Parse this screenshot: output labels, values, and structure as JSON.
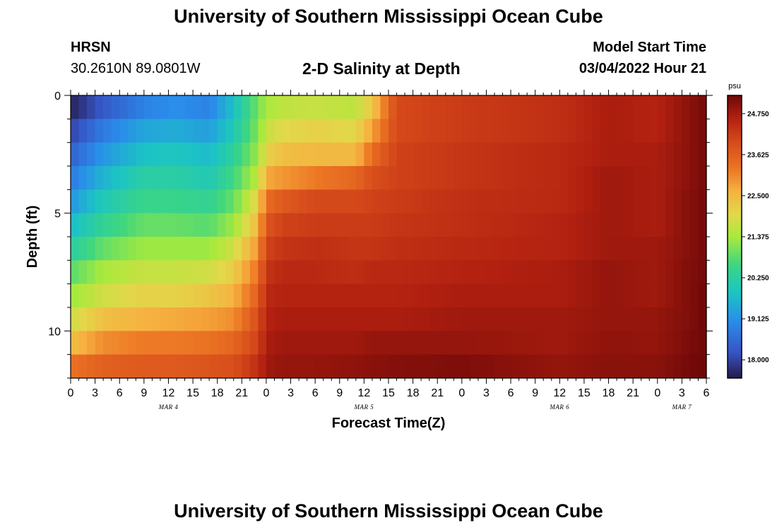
{
  "header": {
    "title": "University of Southern Mississippi Ocean Cube",
    "station": "HRSN",
    "coords": "30.2610N  89.0801W",
    "subtitle": "2-D Salinity at Depth",
    "model_start_label": "Model Start Time",
    "model_start_value": "03/04/2022 Hour 21"
  },
  "footer": {
    "title": "University of Southern Mississippi Ocean Cube"
  },
  "chart_data": {
    "type": "heatmap",
    "title": "2-D Salinity at Depth",
    "xlabel": "Forecast Time(Z)",
    "ylabel": "Depth (ft)",
    "x_range_hours": [
      0,
      78
    ],
    "y_range_ft": [
      0,
      12
    ],
    "y_ticks": [
      0,
      5,
      10
    ],
    "x_tick_labels": [
      "0",
      "3",
      "6",
      "9",
      "12",
      "15",
      "18",
      "21",
      "0",
      "3",
      "6",
      "9",
      "12",
      "15",
      "18",
      "21",
      "0",
      "3",
      "6",
      "9",
      "12",
      "15",
      "18",
      "21",
      "0",
      "3",
      "6"
    ],
    "day_labels": [
      {
        "hour": 12,
        "label": "MAR 4"
      },
      {
        "hour": 36,
        "label": "MAR 5"
      },
      {
        "hour": 60,
        "label": "MAR 6"
      },
      {
        "hour": 75,
        "label": "MAR 7"
      }
    ],
    "colorbar": {
      "unit": "psu",
      "min": 17.5,
      "max": 25.25,
      "tick_labels": [
        "24.750",
        "23.625",
        "22.500",
        "21.375",
        "20.250",
        "19.125",
        "18.000"
      ],
      "tick_values": [
        24.75,
        23.625,
        22.5,
        21.375,
        20.25,
        19.125,
        18.0
      ]
    },
    "depth_levels_ft": [
      0.5,
      1.5,
      2.5,
      3.5,
      4.5,
      5.5,
      6.5,
      7.5,
      8.5,
      9.5,
      10.5,
      11.5
    ],
    "salinity_profile_keyframes": [
      {
        "hour": 0,
        "values": [
          17.6,
          18.0,
          18.4,
          18.8,
          19.2,
          19.7,
          20.2,
          20.8,
          21.3,
          21.8,
          22.4,
          23.3
        ]
      },
      {
        "hour": 4,
        "values": [
          18.3,
          18.8,
          19.2,
          19.6,
          20.0,
          20.4,
          20.9,
          21.4,
          21.8,
          22.4,
          23.0,
          23.6
        ]
      },
      {
        "hour": 9,
        "values": [
          18.9,
          19.4,
          19.8,
          20.2,
          20.5,
          20.9,
          21.3,
          21.7,
          22.1,
          22.6,
          23.2,
          23.7
        ]
      },
      {
        "hour": 13,
        "values": [
          19.1,
          19.5,
          19.9,
          20.2,
          20.5,
          20.9,
          21.3,
          21.7,
          22.1,
          22.7,
          23.2,
          23.7
        ]
      },
      {
        "hour": 17,
        "values": [
          18.9,
          19.3,
          19.7,
          20.0,
          20.4,
          20.8,
          21.3,
          21.8,
          22.3,
          22.8,
          23.3,
          23.8
        ]
      },
      {
        "hour": 20,
        "values": [
          19.8,
          20.0,
          20.3,
          20.6,
          20.9,
          21.3,
          21.8,
          22.2,
          22.6,
          23.0,
          23.5,
          23.9
        ]
      },
      {
        "hour": 23,
        "values": [
          21.0,
          21.1,
          21.3,
          21.6,
          22.1,
          22.5,
          22.9,
          23.3,
          23.6,
          23.9,
          24.1,
          24.4
        ]
      },
      {
        "hour": 24,
        "values": [
          21.4,
          21.7,
          22.1,
          22.7,
          23.4,
          23.8,
          24.1,
          24.3,
          24.5,
          24.6,
          24.7,
          24.8
        ]
      },
      {
        "hour": 26,
        "values": [
          21.6,
          22.0,
          22.4,
          22.9,
          23.7,
          24.1,
          24.3,
          24.5,
          24.6,
          24.7,
          24.8,
          24.9
        ]
      },
      {
        "hour": 30,
        "values": [
          21.7,
          22.1,
          22.5,
          23.2,
          24.0,
          24.2,
          24.4,
          24.5,
          24.6,
          24.7,
          24.8,
          24.9
        ]
      },
      {
        "hour": 35,
        "values": [
          21.6,
          22.0,
          22.5,
          23.5,
          24.0,
          24.2,
          24.3,
          24.4,
          24.6,
          24.7,
          24.8,
          24.95
        ]
      },
      {
        "hour": 37,
        "values": [
          22.3,
          22.8,
          23.4,
          23.9,
          24.1,
          24.2,
          24.3,
          24.5,
          24.6,
          24.7,
          24.9,
          25.0
        ]
      },
      {
        "hour": 40,
        "values": [
          24.0,
          24.0,
          24.1,
          24.1,
          24.2,
          24.3,
          24.4,
          24.5,
          24.6,
          24.7,
          24.9,
          25.05
        ]
      },
      {
        "hour": 48,
        "values": [
          24.2,
          24.2,
          24.3,
          24.3,
          24.4,
          24.4,
          24.5,
          24.6,
          24.7,
          24.8,
          24.9,
          25.1
        ]
      },
      {
        "hour": 60,
        "values": [
          24.4,
          24.4,
          24.5,
          24.5,
          24.5,
          24.6,
          24.6,
          24.7,
          24.7,
          24.8,
          24.8,
          24.9
        ]
      },
      {
        "hour": 66,
        "values": [
          24.7,
          24.7,
          24.7,
          24.8,
          24.8,
          24.8,
          24.8,
          24.9,
          24.9,
          24.9,
          24.95,
          25.0
        ]
      },
      {
        "hour": 72,
        "values": [
          24.6,
          24.6,
          24.7,
          24.7,
          24.7,
          24.7,
          24.8,
          24.8,
          24.8,
          24.9,
          24.9,
          25.0
        ]
      },
      {
        "hour": 76,
        "values": [
          25.0,
          25.0,
          25.0,
          25.0,
          25.05,
          25.05,
          25.05,
          25.1,
          25.1,
          25.1,
          25.15,
          25.2
        ]
      },
      {
        "hour": 78,
        "values": [
          25.2,
          25.2,
          25.2,
          25.2,
          25.2,
          25.2,
          25.2,
          25.2,
          25.25,
          25.25,
          25.25,
          25.25
        ]
      }
    ]
  }
}
